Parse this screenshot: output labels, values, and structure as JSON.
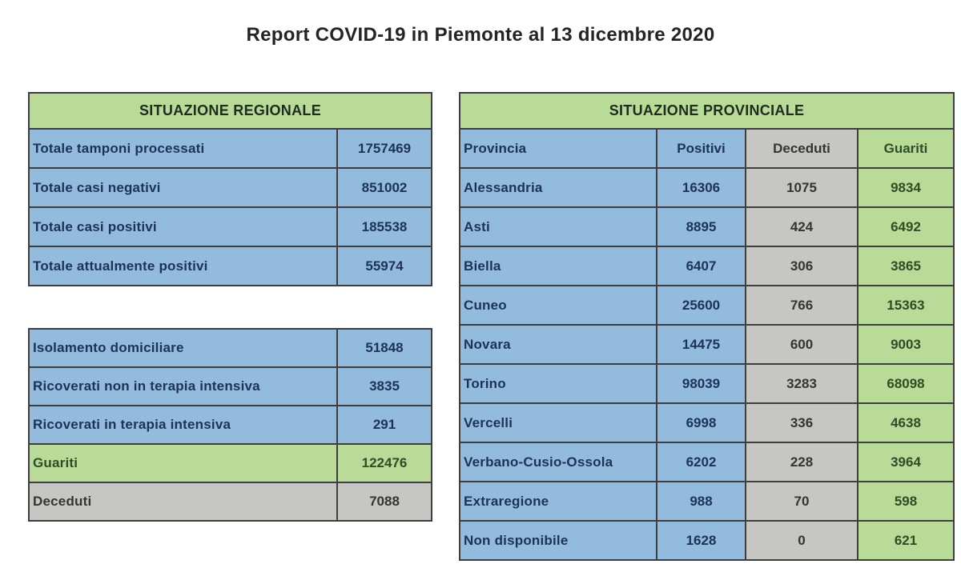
{
  "title": "Report COVID-19 in Piemonte al 13 dicembre 2020",
  "regional": {
    "header": "SITUAZIONE REGIONALE",
    "summary_rows": [
      {
        "label": "Totale tamponi processati",
        "value": "1757469",
        "style": "blue"
      },
      {
        "label": "Totale casi negativi",
        "value": "851002",
        "style": "blue"
      },
      {
        "label": "Totale casi positivi",
        "value": "185538",
        "style": "blue"
      },
      {
        "label": "Totale attualmente positivi",
        "value": "55974",
        "style": "blue"
      }
    ],
    "detail_rows": [
      {
        "label": "Isolamento domiciliare",
        "value": "51848",
        "style": "blue"
      },
      {
        "label": "Ricoverati non in terapia intensiva",
        "value": "3835",
        "style": "blue"
      },
      {
        "label": "Ricoverati in terapia intensiva",
        "value": "291",
        "style": "blue"
      },
      {
        "label": "Guariti",
        "value": "122476",
        "style": "green"
      },
      {
        "label": "Deceduti",
        "value": "7088",
        "style": "gray"
      }
    ]
  },
  "provincial": {
    "header": "SITUAZIONE PROVINCIALE",
    "columns": [
      "Provincia",
      "Positivi",
      "Deceduti",
      "Guariti"
    ],
    "column_styles": [
      "blue",
      "blue",
      "gray",
      "green"
    ],
    "rows": [
      [
        "Alessandria",
        "16306",
        "1075",
        "9834"
      ],
      [
        "Asti",
        "8895",
        "424",
        "6492"
      ],
      [
        "Biella",
        "6407",
        "306",
        "3865"
      ],
      [
        "Cuneo",
        "25600",
        "766",
        "15363"
      ],
      [
        "Novara",
        "14475",
        "600",
        "9003"
      ],
      [
        "Torino",
        "98039",
        "3283",
        "68098"
      ],
      [
        "Vercelli",
        "6998",
        "336",
        "4638"
      ],
      [
        "Verbano-Cusio-Ossola",
        "6202",
        "228",
        "3964"
      ],
      [
        "Extraregione",
        "988",
        "70",
        "598"
      ],
      [
        "Non disponibile",
        "1628",
        "0",
        "621"
      ]
    ]
  },
  "colors": {
    "green": "#b8dc98",
    "blue": "#92bbde",
    "gray": "#c6c6c2",
    "border": "#3e3e3e",
    "text_blue": "#1c3355",
    "text_gray": "#343434",
    "text_green": "#2e4d26",
    "title": "#242424"
  }
}
